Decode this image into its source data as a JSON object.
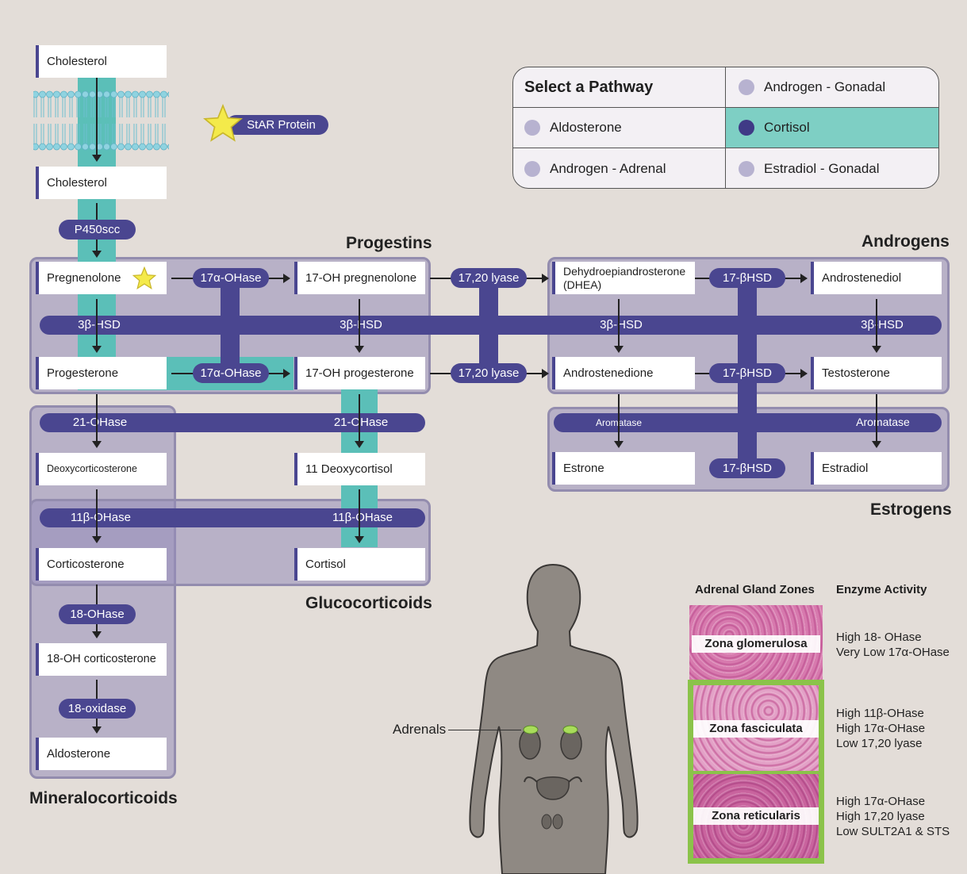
{
  "colors": {
    "enzyme": "#4a4690",
    "highlight": "#5bbfb8",
    "group": "#a69fc4",
    "selected_dot": "#3f3a86",
    "dot": "#b7b2d0",
    "zone_border": "#8bc34a"
  },
  "legend": {
    "title": "Select a Pathway",
    "options": [
      "Androgen - Gonadal",
      "Aldosterone",
      "Cortisol",
      "Androgen - Adrenal",
      "Estradiol - Gonadal"
    ],
    "selected": "Cortisol"
  },
  "star_label": "StAR Protein",
  "groups": {
    "progestins": "Progestins",
    "androgens": "Androgens",
    "estrogens": "Estrogens",
    "glucocorticoids": "Glucocorticoids",
    "mineralocorticoids": "Mineralocorticoids"
  },
  "molecules": {
    "cholesterol_outer": "Cholesterol",
    "cholesterol_inner": "Cholesterol",
    "pregnenolone": "Pregnenolone",
    "oh17_pregnenolone": "17-OH pregnenolone",
    "dhea": "Dehydroepiandrosterone (DHEA)",
    "androstenediol": "Androstenediol",
    "progesterone": "Progesterone",
    "oh17_progesterone": "17-OH progesterone",
    "androstenedione": "Androstenedione",
    "testosterone": "Testosterone",
    "estrone": "Estrone",
    "estradiol": "Estradiol",
    "deoxycorticosterone": "Deoxycorticosterone",
    "deoxycortisol11": "11 Deoxycortisol",
    "corticosterone": "Corticosterone",
    "cortisol": "Cortisol",
    "oh18_corticosterone": "18-OH corticosterone",
    "aldosterone": "Aldosterone"
  },
  "enzymes": {
    "p450scc": "P450scc",
    "ohase17a": "17α-OHase",
    "lyase1720": "17,20 lyase",
    "hsd17b": "17-βHSD",
    "hsd3b": "3β-HSD",
    "ohase21": "21-OHase",
    "aromatase": "Aromatase",
    "ohase11b": "11β-OHase",
    "ohase18": "18-OHase",
    "oxidase18": "18-oxidase"
  },
  "adrenals_label": "Adrenals",
  "zones": {
    "header_zones": "Adrenal Gland Zones",
    "header_activity": "Enzyme Activity",
    "items": [
      {
        "name": "Zona glomerulosa",
        "activity": [
          "High 18- OHase",
          "Very Low 17α-OHase"
        ]
      },
      {
        "name": "Zona fasciculata",
        "activity": [
          "High 11β-OHase",
          "High 17α-OHase",
          "Low 17,20 lyase"
        ]
      },
      {
        "name": "Zona reticularis",
        "activity": [
          "High 17α-OHase",
          "High 17,20 lyase",
          "Low SULT2A1 & STS"
        ]
      }
    ]
  }
}
